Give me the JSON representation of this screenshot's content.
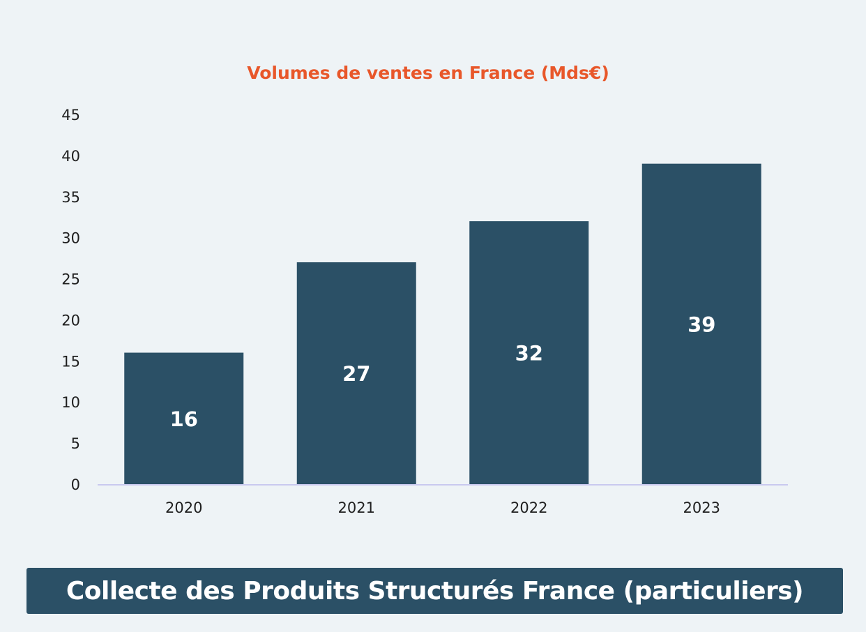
{
  "colors": {
    "background": "#eef3f6",
    "bar": "#2b5066",
    "title": "#e8572a",
    "axis_line": "#c9c9ef",
    "caption_bg": "#2b5066"
  },
  "chart_data": {
    "type": "bar",
    "title": "Volumes de ventes en France (Mds€)",
    "categories": [
      "2020",
      "2021",
      "2022",
      "2023"
    ],
    "values": [
      16,
      27,
      32,
      39
    ],
    "data_labels": [
      "16",
      "27",
      "32",
      "39"
    ],
    "yticks": [
      "0",
      "5",
      "10",
      "15",
      "20",
      "25",
      "30",
      "35",
      "40",
      "45"
    ],
    "ylim": [
      0,
      45
    ],
    "xlabel": "",
    "ylabel": "",
    "grid": false,
    "legend": "none"
  },
  "caption": {
    "text": "Collecte des Produits Structurés France (particuliers)"
  }
}
